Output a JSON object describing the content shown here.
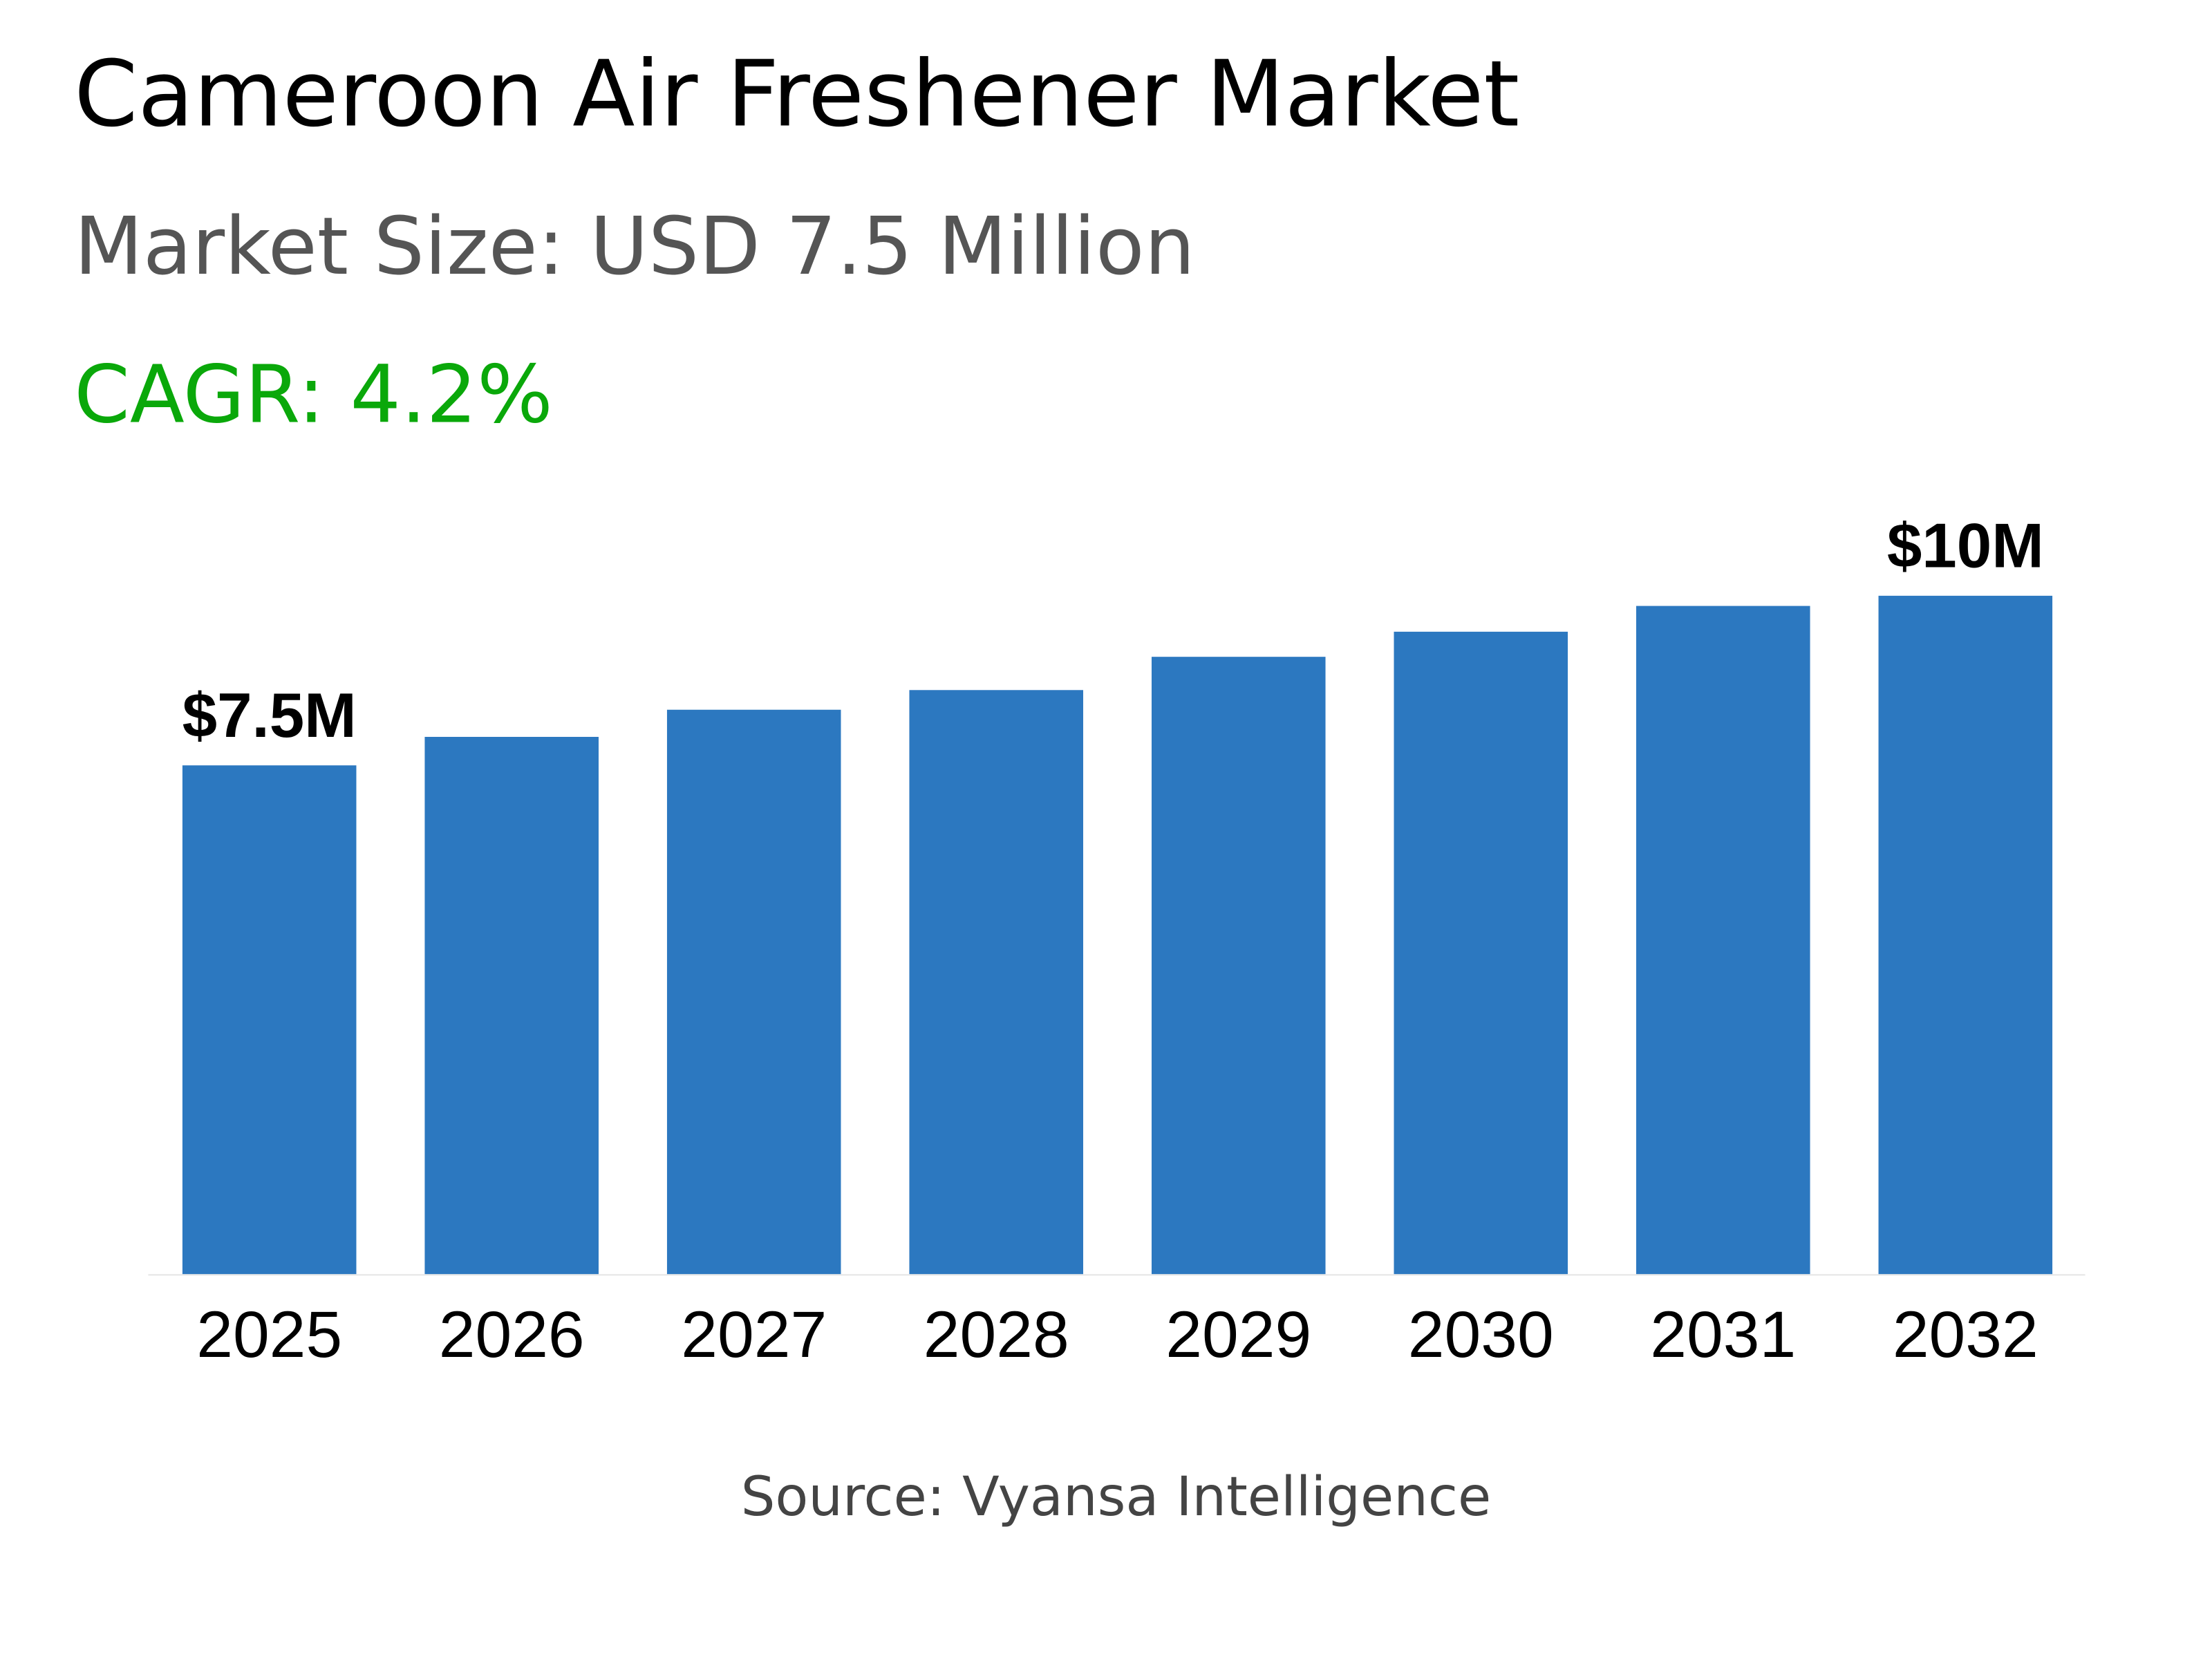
{
  "header": {
    "title": "Cameroon Air Freshener Market",
    "market_size": "Market Size: USD 7.5 Million",
    "cagr": "CAGR: 4.2%"
  },
  "footer": {
    "source": "Source: Vyansa Intelligence"
  },
  "colors": {
    "bar": "#2c78c0",
    "cagr": "#0aa80a",
    "axis": "#e6e6e6"
  },
  "chart_data": {
    "type": "bar",
    "categories": [
      "2025",
      "2026",
      "2027",
      "2028",
      "2029",
      "2030",
      "2031",
      "2032"
    ],
    "values": [
      7.5,
      7.92,
      8.32,
      8.61,
      9.1,
      9.47,
      9.85,
      10.0
    ],
    "data_labels": [
      "$7.5M",
      "",
      "",
      "",
      "",
      "",
      "",
      "$10M"
    ],
    "unit": "USD Million",
    "ylim": [
      0,
      10
    ],
    "grid": false,
    "legend": "none"
  }
}
